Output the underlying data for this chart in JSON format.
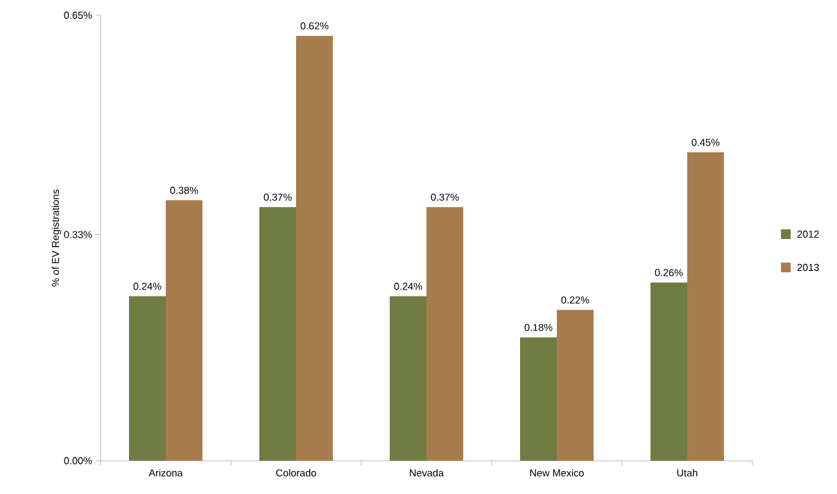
{
  "chart_data": {
    "type": "bar",
    "ylabel": "% of EV Registrations",
    "categories": [
      "Arizona",
      "Colorado",
      "Nevada",
      "New Mexico",
      "Utah"
    ],
    "series": [
      {
        "name": "2012",
        "color": "#717c42",
        "values": [
          0.24,
          0.37,
          0.24,
          0.18,
          0.26
        ],
        "value_labels": [
          "0.24%",
          "0.37%",
          "0.24%",
          "0.18%",
          "0.26%"
        ]
      },
      {
        "name": "2013",
        "color": "#a87d4e",
        "values": [
          0.38,
          0.62,
          0.37,
          0.22,
          0.45
        ],
        "value_labels": [
          "0.38%",
          "0.62%",
          "0.37%",
          "0.22%",
          "0.45%"
        ]
      }
    ],
    "ylim": [
      0,
      0.65
    ],
    "yticks": [
      {
        "value": 0,
        "label": "0.00%"
      },
      {
        "value": 0.33,
        "label": "0.33%"
      },
      {
        "value": 0.65,
        "label": "0.65%"
      }
    ],
    "grid": false,
    "legend": "right"
  }
}
